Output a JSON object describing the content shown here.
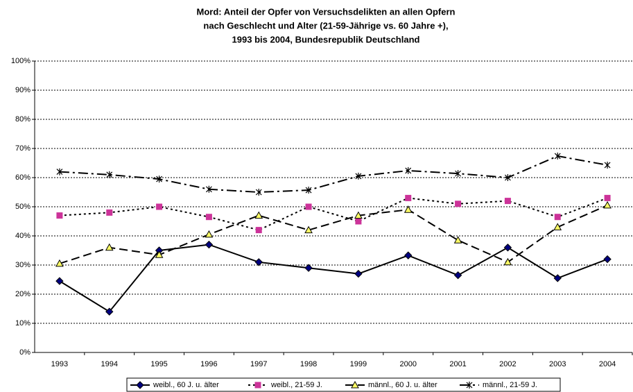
{
  "chart_data": {
    "type": "line",
    "title": [
      "Mord: Anteil der Opfer von Versuchsdelikten an allen Opfern",
      "nach Geschlecht und Alter (21-59-Jährige vs. 60 Jahre +),",
      "1993 bis 2004,  Bundesrepublik Deutschland"
    ],
    "categories": [
      "1993",
      "1994",
      "1995",
      "1996",
      "1997",
      "1998",
      "1999",
      "2000",
      "2001",
      "2002",
      "2003",
      "2004"
    ],
    "series": [
      {
        "name": "weibl., 60 J. u. älter",
        "color": "#000080",
        "marker": "diamond",
        "dash": "solid",
        "values": [
          24.5,
          14,
          35,
          37,
          31,
          29,
          27,
          33.3,
          26.5,
          36,
          25.5,
          32
        ]
      },
      {
        "name": "weibl., 21-59 J.",
        "color": "#cc3399",
        "marker": "square",
        "dash": "dot",
        "values": [
          47,
          48,
          50,
          46.5,
          42,
          50,
          45,
          53,
          51,
          52,
          46.5,
          53
        ]
      },
      {
        "name": "männl., 60 J. u. älter",
        "color": "#ffff66",
        "marker": "triangle",
        "dash": "dash",
        "values": [
          30.5,
          36,
          33.5,
          40.5,
          47,
          42,
          47,
          49,
          38.5,
          31,
          43,
          50.5
        ]
      },
      {
        "name": "männl., 21-59 J.",
        "color": "#000000",
        "marker": "asterisk",
        "dash": "dashdot",
        "values": [
          62,
          61,
          59.5,
          56,
          55,
          55.7,
          60.5,
          62.4,
          61.4,
          60,
          67.4,
          64.3
        ]
      }
    ],
    "line_color": "#000000",
    "ylim": [
      0,
      100
    ],
    "yticks": [
      {
        "value": 0,
        "label": "0%"
      },
      {
        "value": 10,
        "label": "10%"
      },
      {
        "value": 20,
        "label": "20%"
      },
      {
        "value": 30,
        "label": "30%"
      },
      {
        "value": 40,
        "label": "40%"
      },
      {
        "value": 50,
        "label": "50%"
      },
      {
        "value": 60,
        "label": "60%"
      },
      {
        "value": 70,
        "label": "70%"
      },
      {
        "value": 80,
        "label": "80%"
      },
      {
        "value": 90,
        "label": "90%"
      },
      {
        "value": 100,
        "label": "100%"
      }
    ],
    "grid": true,
    "legend": "bottom"
  }
}
